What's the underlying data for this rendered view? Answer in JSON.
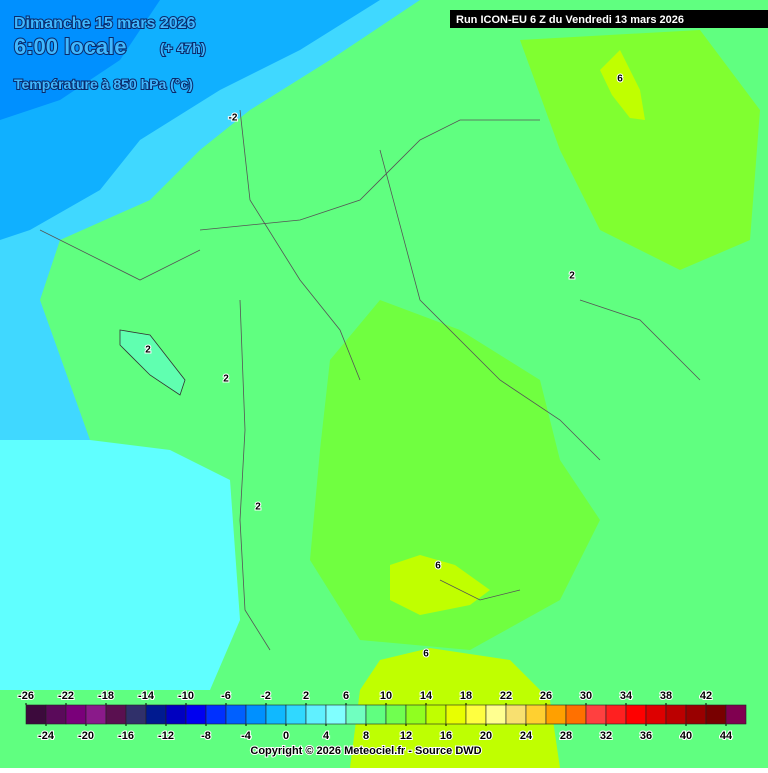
{
  "header": {
    "date": "Dimanche 15 mars 2026",
    "time": "6:00 locale",
    "lead": "(+ 47h)",
    "field": "Température à 850 hPa (°c)",
    "run": "Run ICON-EU 6 Z du Vendredi 13 mars 2026"
  },
  "map": {
    "contour_labels": [
      "-2",
      "2",
      "2",
      "2",
      "2",
      "6",
      "6",
      "6"
    ]
  },
  "colorbar": {
    "lim": [
      -26,
      46
    ],
    "top_labels": [
      -26,
      -22,
      -18,
      -14,
      -10,
      -6,
      -2,
      2,
      6,
      10,
      14,
      18,
      22,
      26,
      30,
      34,
      38,
      42
    ],
    "bottom_labels": [
      -24,
      -20,
      -16,
      -12,
      -8,
      -4,
      0,
      4,
      8,
      12,
      16,
      20,
      24,
      28,
      32,
      36,
      40,
      44
    ],
    "colors": [
      "#3c0a3c",
      "#5a0a5a",
      "#7a007a",
      "#8a1a8a",
      "#5a1050",
      "#30306a",
      "#001a90",
      "#0000c0",
      "#0000f0",
      "#0030ff",
      "#0060ff",
      "#0090ff",
      "#10b8ff",
      "#30d8ff",
      "#60f0ff",
      "#80ffff",
      "#70ffc0",
      "#60ff80",
      "#70ff50",
      "#90ff20",
      "#c0ff00",
      "#e8ff00",
      "#ffff40",
      "#ffff90",
      "#f8e070",
      "#ffd030",
      "#ffa000",
      "#ff7000",
      "#ff4040",
      "#ff2020",
      "#ff0000",
      "#dd0000",
      "#bb0000",
      "#990000",
      "#780000",
      "#800050"
    ]
  },
  "footer": {
    "copyright": "Copyright © 2026 Meteociel.fr - Source DWD"
  }
}
